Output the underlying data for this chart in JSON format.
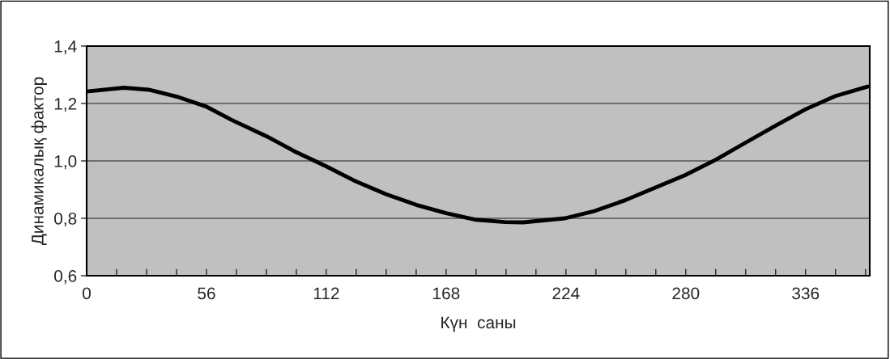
{
  "chart_data": {
    "type": "line",
    "xlabel": "Күн  саны",
    "ylabel": "Динамикалық фактор",
    "series": [
      {
        "color": "#000000",
        "x": [
          0,
          17.5,
          29,
          43,
          56,
          68,
          84,
          97,
          112,
          126,
          140,
          154,
          168,
          182,
          195.5,
          204,
          223.5,
          237.6,
          251.7,
          266,
          279.6,
          294,
          307.6,
          322,
          336,
          350,
          365
        ],
        "values": [
          1.242,
          1.255,
          1.248,
          1.222,
          1.189,
          1.142,
          1.086,
          1.034,
          0.981,
          0.928,
          0.884,
          0.847,
          0.818,
          0.795,
          0.787,
          0.786,
          0.8,
          0.826,
          0.863,
          0.908,
          0.95,
          1.004,
          1.062,
          1.123,
          1.18,
          1.226,
          1.259
        ]
      }
    ],
    "xlim": [
      0,
      366
    ],
    "xticks": [
      0,
      {
        "value": 14,
        "label": null
      },
      {
        "value": 28,
        "label": null
      },
      {
        "value": 42,
        "label": null
      },
      56,
      {
        "value": 70,
        "label": null
      },
      {
        "value": 84,
        "label": null
      },
      {
        "value": 98,
        "label": null
      },
      112,
      {
        "value": 126,
        "label": null
      },
      {
        "value": 140,
        "label": null
      },
      {
        "value": 154,
        "label": null
      },
      168,
      {
        "value": 182,
        "label": null
      },
      {
        "value": 196,
        "label": null
      },
      {
        "value": 210,
        "label": null
      },
      224,
      {
        "value": 238,
        "label": null
      },
      {
        "value": 252,
        "label": null
      },
      {
        "value": 266,
        "label": null
      },
      280,
      {
        "value": 294,
        "label": null
      },
      {
        "value": 308,
        "label": null
      },
      {
        "value": 322,
        "label": null
      },
      336,
      {
        "value": 350,
        "label": null
      },
      {
        "value": 364,
        "label": null
      }
    ],
    "ylim": [
      0.6,
      1.4
    ],
    "yticks": [
      {
        "value": 0.6,
        "label": "0,6"
      },
      {
        "value": 0.8,
        "label": "0,8"
      },
      {
        "value": 1.0,
        "label": "1,0"
      },
      {
        "value": 1.2,
        "label": "1,2"
      },
      {
        "value": 1.4,
        "label": "1,4"
      }
    ],
    "grid": "y",
    "legend": false,
    "marker": "none",
    "line_style": "solid"
  }
}
